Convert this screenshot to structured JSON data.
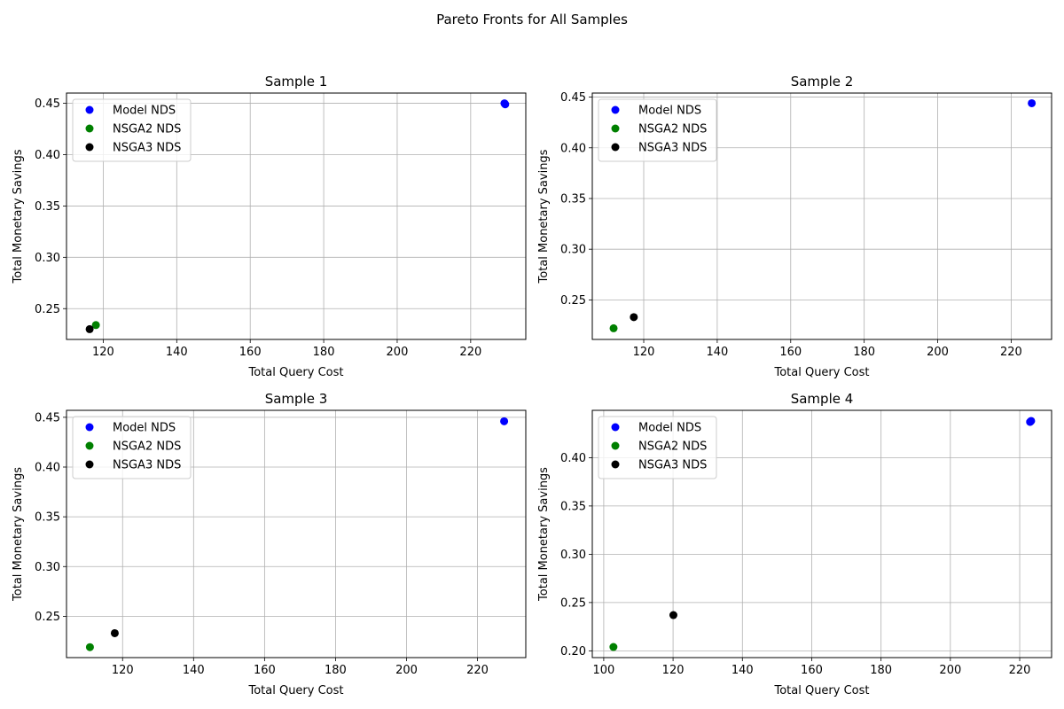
{
  "figure": {
    "suptitle": "Pareto Fronts for All Samples"
  },
  "chart_data": [
    {
      "type": "scatter",
      "title": "Sample 1",
      "xlabel": "Total Query Cost",
      "ylabel": "Total Monetary Savings",
      "xlim": [
        110,
        235
      ],
      "ylim": [
        0.22,
        0.46
      ],
      "xticks": [
        120,
        140,
        160,
        180,
        200,
        220
      ],
      "yticks": [
        0.25,
        0.3,
        0.35,
        0.4,
        0.45
      ],
      "grid": true,
      "legend_position": "top-left",
      "series": [
        {
          "name": "Model NDS",
          "color": "#0000ff",
          "points": [
            {
              "x": 229.2,
              "y": 0.45
            },
            {
              "x": 229.4,
              "y": 0.449
            }
          ]
        },
        {
          "name": "NSGA2 NDS",
          "color": "#008000",
          "points": [
            {
              "x": 118.0,
              "y": 0.234
            }
          ]
        },
        {
          "name": "NSGA3 NDS",
          "color": "#000000",
          "points": [
            {
              "x": 116.3,
              "y": 0.23
            }
          ]
        }
      ]
    },
    {
      "type": "scatter",
      "title": "Sample 2",
      "xlabel": "Total Query Cost",
      "ylabel": "Total Monetary Savings",
      "xlim": [
        106,
        231
      ],
      "ylim": [
        0.211,
        0.454
      ],
      "xticks": [
        120,
        140,
        160,
        180,
        200,
        220
      ],
      "yticks": [
        0.25,
        0.3,
        0.35,
        0.4,
        0.45
      ],
      "grid": true,
      "legend_position": "top-left",
      "series": [
        {
          "name": "Model NDS",
          "color": "#0000ff",
          "points": [
            {
              "x": 225.6,
              "y": 0.444
            }
          ]
        },
        {
          "name": "NSGA2 NDS",
          "color": "#008000",
          "points": [
            {
              "x": 111.8,
              "y": 0.222
            }
          ]
        },
        {
          "name": "NSGA3 NDS",
          "color": "#000000",
          "points": [
            {
              "x": 117.3,
              "y": 0.233
            }
          ]
        }
      ]
    },
    {
      "type": "scatter",
      "title": "Sample 3",
      "xlabel": "Total Query Cost",
      "ylabel": "Total Monetary Savings",
      "xlim": [
        104.2,
        233.6
      ],
      "ylim": [
        0.2085,
        0.457
      ],
      "xticks": [
        120,
        140,
        160,
        180,
        200,
        220
      ],
      "yticks": [
        0.25,
        0.3,
        0.35,
        0.4,
        0.45
      ],
      "grid": true,
      "legend_position": "top-left",
      "series": [
        {
          "name": "Model NDS",
          "color": "#0000ff",
          "points": [
            {
              "x": 227.5,
              "y": 0.446
            }
          ]
        },
        {
          "name": "NSGA2 NDS",
          "color": "#008000",
          "points": [
            {
              "x": 110.8,
              "y": 0.219
            }
          ]
        },
        {
          "name": "NSGA3 NDS",
          "color": "#000000",
          "points": [
            {
              "x": 117.8,
              "y": 0.233
            }
          ]
        }
      ]
    },
    {
      "type": "scatter",
      "title": "Sample 4",
      "xlabel": "Total Query Cost",
      "ylabel": "Total Monetary Savings",
      "xlim": [
        96.7,
        229.2
      ],
      "ylim": [
        0.193,
        0.449
      ],
      "xticks": [
        100,
        120,
        140,
        160,
        180,
        200,
        220
      ],
      "yticks": [
        0.2,
        0.25,
        0.3,
        0.35,
        0.4
      ],
      "grid": true,
      "legend_position": "top-left",
      "series": [
        {
          "name": "Model NDS",
          "color": "#0000ff",
          "points": [
            {
              "x": 223.0,
              "y": 0.437
            },
            {
              "x": 223.3,
              "y": 0.438
            }
          ]
        },
        {
          "name": "NSGA2 NDS",
          "color": "#008000",
          "points": [
            {
              "x": 102.8,
              "y": 0.204
            }
          ]
        },
        {
          "name": "NSGA3 NDS",
          "color": "#000000",
          "points": [
            {
              "x": 120.1,
              "y": 0.237
            }
          ]
        }
      ]
    }
  ]
}
